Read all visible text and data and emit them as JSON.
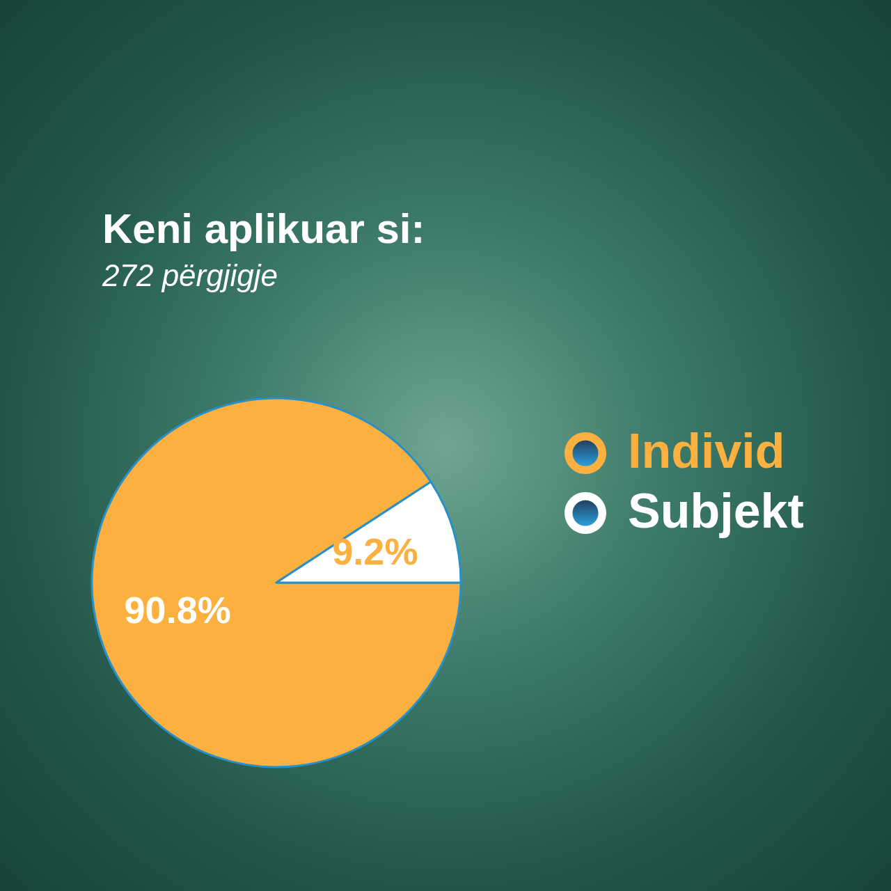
{
  "chart_data": {
    "type": "pie",
    "title": "Keni aplikuar si:",
    "subtitle": "272 përgjigje",
    "categories": [
      "Individ",
      "Subjekt"
    ],
    "values": [
      90.8,
      9.2
    ],
    "colors": [
      "#fbb040",
      "#ffffff"
    ],
    "value_labels": [
      "90.8%",
      "9.2%"
    ],
    "legend": "right"
  }
}
